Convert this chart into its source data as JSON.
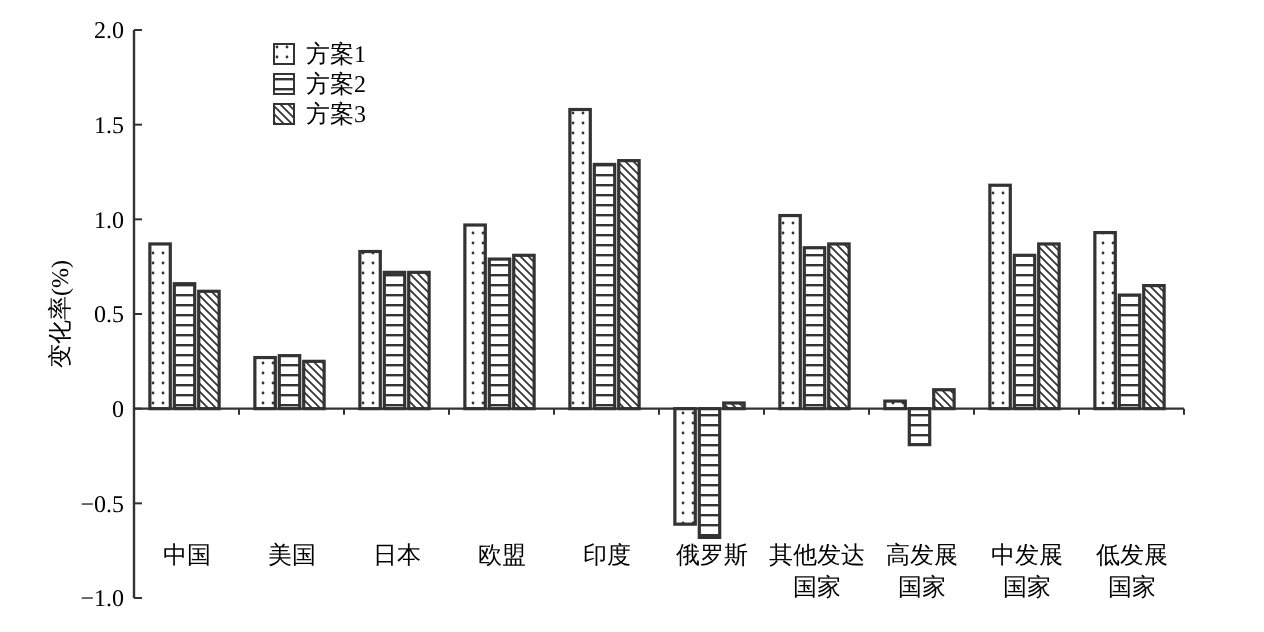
{
  "chart_data": {
    "type": "bar",
    "ylabel": "变化率(%)",
    "categories": [
      "中国",
      "美国",
      "日本",
      "欧盟",
      "印度",
      "俄罗斯",
      "其他发达国家",
      "高发展国家",
      "中发展国家",
      "低发展国家"
    ],
    "series": [
      {
        "name": "方案1",
        "color": "#333333",
        "values": [
          0.87,
          0.27,
          0.83,
          0.97,
          1.58,
          -0.61,
          1.02,
          0.04,
          1.18,
          0.93
        ]
      },
      {
        "name": "方案2",
        "color": "#333333",
        "values": [
          0.66,
          0.28,
          0.72,
          0.79,
          1.29,
          -0.68,
          0.85,
          -0.19,
          0.81,
          0.6
        ]
      },
      {
        "name": "方案3",
        "color": "#333333",
        "values": [
          0.62,
          0.25,
          0.72,
          0.81,
          1.31,
          0.03,
          0.87,
          0.1,
          0.87,
          0.65
        ]
      }
    ],
    "ylim": [
      -1,
      2
    ],
    "yticks": [
      {
        "value": -1,
        "label": "−1.0"
      },
      {
        "value": -0.5,
        "label": "−0.5"
      },
      0,
      {
        "value": 0.5,
        "label": "0.5"
      },
      {
        "value": 1,
        "label": "1.0"
      },
      {
        "value": 1.5,
        "label": "1.5"
      },
      {
        "value": 2,
        "label": "2.0"
      }
    ],
    "legend": "top left"
  }
}
